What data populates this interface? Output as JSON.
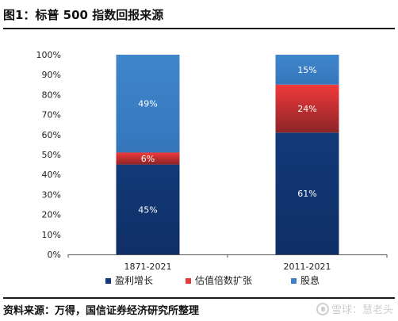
{
  "header": {
    "title": "图1：标普 500 指数回报来源"
  },
  "footer": {
    "source": "资料来源：万得，国信证券经济研究所整理",
    "watermark": "雪球：慧老头"
  },
  "chart_data": {
    "type": "bar",
    "stacked": true,
    "categories": [
      "1871-2021",
      "2011-2021"
    ],
    "series": [
      {
        "name": "盈利增长",
        "values": [
          45,
          61
        ],
        "labels": [
          "45%",
          "61%"
        ],
        "color": "#123a78"
      },
      {
        "name": "估值倍数扩张",
        "values": [
          6,
          24
        ],
        "labels": [
          "6%",
          "24%"
        ],
        "color": "#e23b3b"
      },
      {
        "name": "股息",
        "values": [
          49,
          15
        ],
        "labels": [
          "49%",
          "15%"
        ],
        "color": "#3b7fc4"
      }
    ],
    "y_ticks": [
      "0%",
      "10%",
      "20%",
      "30%",
      "40%",
      "50%",
      "60%",
      "70%",
      "80%",
      "90%",
      "100%"
    ],
    "ylim": [
      0,
      100
    ],
    "grid": false,
    "legend": "bottom"
  }
}
